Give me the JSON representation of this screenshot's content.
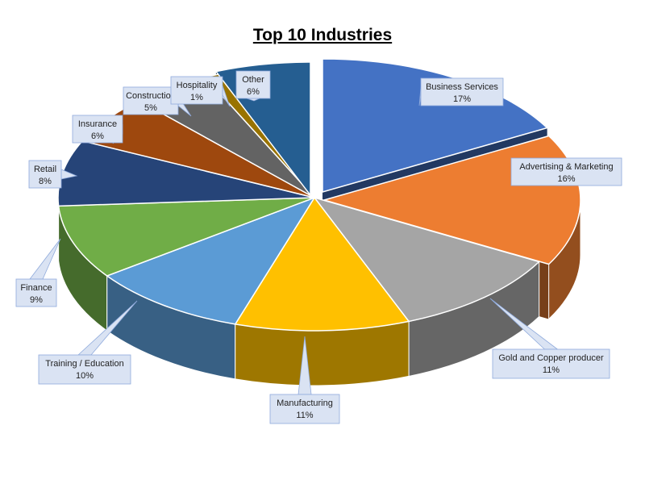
{
  "chart_data": {
    "type": "pie",
    "title": "Top 10 Industries",
    "slices": [
      {
        "label": "Business Services",
        "value": 17,
        "value_label": "17%",
        "color": "#4472C4"
      },
      {
        "label": "Advertising & Marketing",
        "value": 16,
        "value_label": "16%",
        "color": "#ED7D31"
      },
      {
        "label": "Gold and Copper producer",
        "value": 11,
        "value_label": "11%",
        "color": "#A5A5A5"
      },
      {
        "label": "Manufacturing",
        "value": 11,
        "value_label": "11%",
        "color": "#FFC000"
      },
      {
        "label": "Training / Education",
        "value": 10,
        "value_label": "10%",
        "color": "#5B9BD5"
      },
      {
        "label": "Finance",
        "value": 9,
        "value_label": "9%",
        "color": "#70AD47"
      },
      {
        "label": "Retail",
        "value": 8,
        "value_label": "8%",
        "color": "#264478"
      },
      {
        "label": "Insurance",
        "value": 6,
        "value_label": "6%",
        "color": "#9E480E"
      },
      {
        "label": "Construction",
        "value": 5,
        "value_label": "5%",
        "color": "#636363"
      },
      {
        "label": "Hospitality",
        "value": 1,
        "value_label": "1%",
        "color": "#997300"
      },
      {
        "label": "Other",
        "value": 6,
        "value_label": "6%",
        "color": "#255E91"
      }
    ],
    "style": "3d-exploded"
  }
}
